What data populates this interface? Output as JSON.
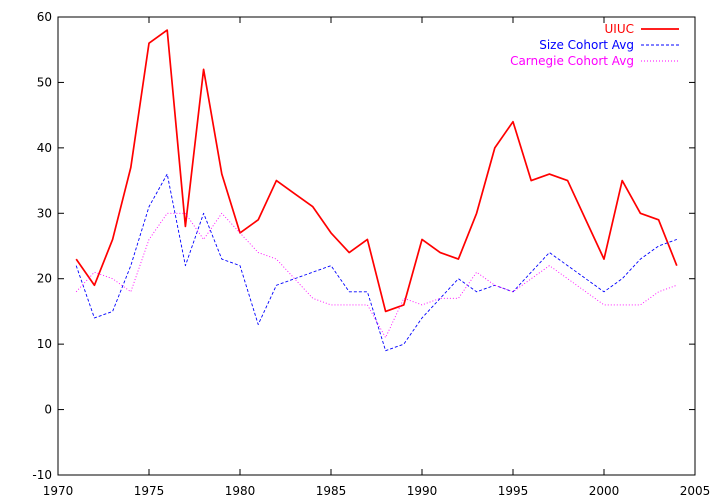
{
  "chart_data": {
    "type": "line",
    "title": "",
    "xlabel": "",
    "ylabel": "",
    "xlim": [
      1970,
      2005
    ],
    "ylim": [
      -10,
      60
    ],
    "xticks": [
      "1970",
      "1975",
      "1980",
      "1985",
      "1990",
      "1995",
      "2000",
      "2005"
    ],
    "yticks": [
      "-10",
      "0",
      "10",
      "20",
      "30",
      "40",
      "50",
      "60"
    ],
    "grid": false,
    "legend_position": "top-right",
    "x": [
      1971,
      1972,
      1973,
      1974,
      1975,
      1976,
      1977,
      1978,
      1979,
      1980,
      1981,
      1982,
      1983,
      1984,
      1985,
      1986,
      1987,
      1988,
      1989,
      1990,
      1991,
      1992,
      1993,
      1994,
      1995,
      1996,
      1997,
      1998,
      1999,
      2000,
      2001,
      2002,
      2003,
      2004
    ],
    "series": [
      {
        "name": "UIUC",
        "color": "#ff0000",
        "line_style": "solid",
        "values": [
          23,
          19,
          26,
          37,
          56,
          58,
          28,
          52,
          36,
          27,
          29,
          35,
          33,
          31,
          27,
          24,
          26,
          15,
          16,
          26,
          24,
          23,
          30,
          40,
          44,
          35,
          36,
          35,
          29,
          23,
          35,
          30,
          29,
          22
        ]
      },
      {
        "name": "Size Cohort Avg",
        "color": "#0000ff",
        "line_style": "dashed",
        "values": [
          22,
          14,
          15,
          22,
          31,
          36,
          22,
          30,
          23,
          22,
          13,
          19,
          20,
          21,
          22,
          18,
          18,
          9,
          10,
          14,
          17,
          20,
          18,
          19,
          18,
          21,
          24,
          22,
          20,
          18,
          20,
          23,
          25,
          26
        ]
      },
      {
        "name": "Carnegie Cohort Avg",
        "color": "#ff00ff",
        "line_style": "dotted",
        "values": [
          18,
          21,
          20,
          18,
          26,
          30,
          30,
          26,
          30,
          27,
          24,
          23,
          20,
          17,
          16,
          16,
          16,
          11,
          17,
          16,
          17,
          17,
          21,
          19,
          18,
          20,
          22,
          20,
          18,
          16,
          16,
          16,
          18,
          19
        ]
      }
    ]
  }
}
